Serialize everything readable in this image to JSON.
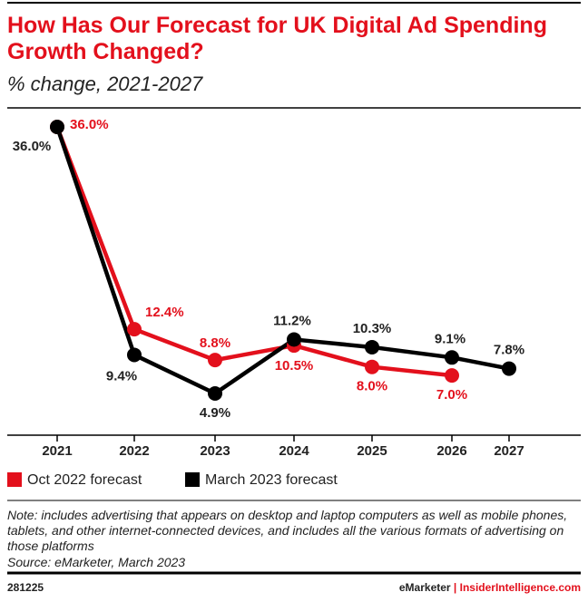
{
  "title": "How Has Our Forecast for UK Digital Ad Spending Growth Changed?",
  "subtitle": "% change, 2021-2027",
  "chart_data": {
    "type": "line",
    "categories": [
      "2021",
      "2022",
      "2023",
      "2024",
      "2025",
      "2026",
      "2027"
    ],
    "series": [
      {
        "name": "Oct 2022 forecast",
        "color": "#e3101c",
        "values": [
          36.0,
          12.4,
          8.8,
          10.5,
          8.0,
          7.0,
          null
        ],
        "value_labels": [
          "36.0%",
          "12.4%",
          "8.8%",
          "10.5%",
          "8.0%",
          "7.0%",
          null
        ]
      },
      {
        "name": "March 2023 forecast",
        "color": "#000000",
        "values": [
          36.0,
          9.4,
          4.9,
          11.2,
          10.3,
          9.1,
          7.8
        ],
        "value_labels": [
          "36.0%",
          "9.4%",
          "4.9%",
          "11.2%",
          "10.3%",
          "9.1%",
          "7.8%"
        ]
      }
    ],
    "legend": "bottom-left"
  },
  "note": "Note: includes advertising that appears on desktop and laptop computers as well as mobile phones, tablets, and other internet-connected devices, and includes all the various formats of advertising on those platforms",
  "source": "Source: eMarketer, March 2023",
  "footer": {
    "id": "281225",
    "brand": "eMarketer",
    "separator": "|",
    "site": "InsiderIntelligence.com"
  }
}
